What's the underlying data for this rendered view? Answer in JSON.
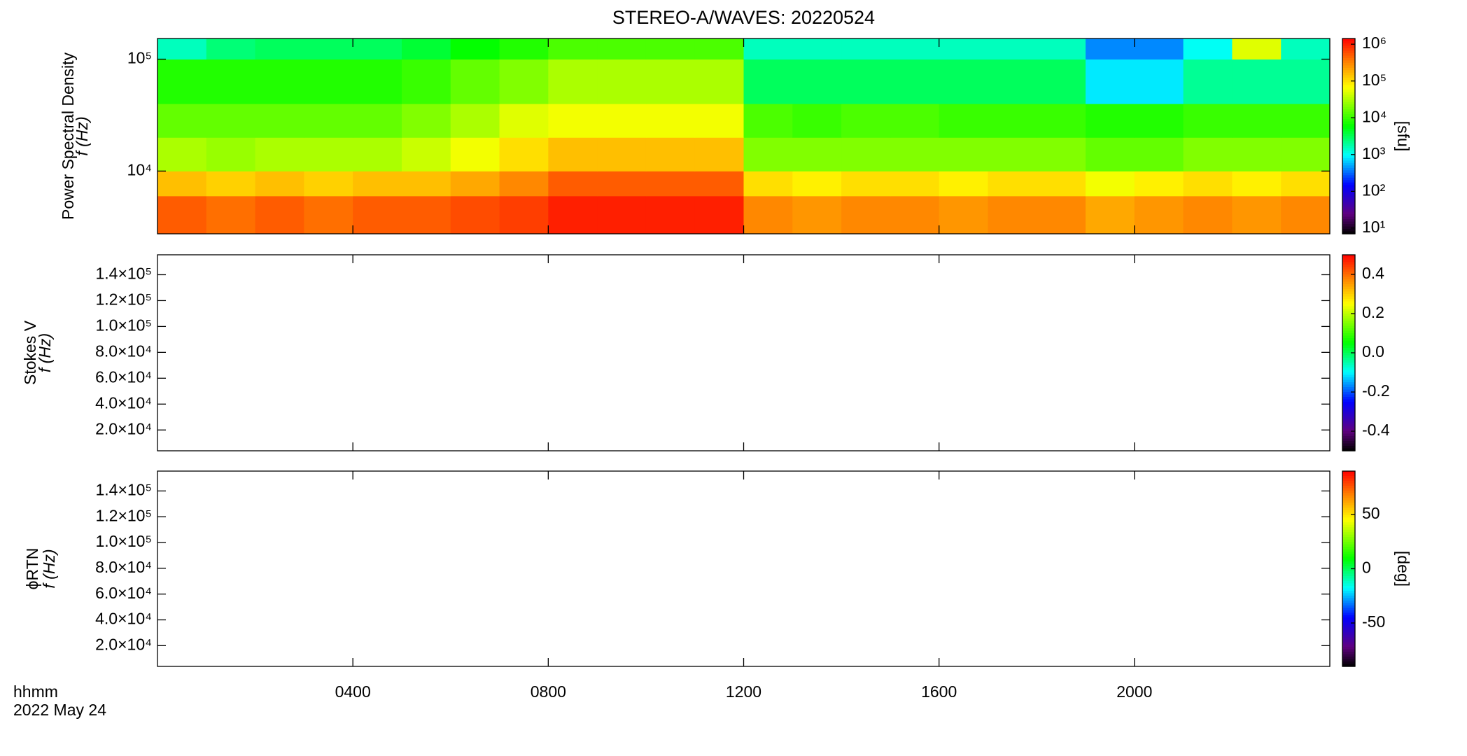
{
  "chart_data": [
    {
      "type": "heatmap",
      "title": "STEREO-A/WAVES: 20220524",
      "ylabel": [
        "Power Spectral Density",
        "f (Hz)"
      ],
      "ylog": true,
      "ylim": [
        2750,
        153000
      ],
      "yticks": [
        {
          "value": 10000,
          "label": "10⁴"
        },
        {
          "value": 100000,
          "label": "10⁵"
        }
      ],
      "xlim": [
        0,
        24
      ],
      "x": [
        0,
        1,
        2,
        3,
        4,
        5,
        6,
        7,
        8,
        9,
        10,
        11,
        12,
        13,
        14,
        15,
        16,
        17,
        18,
        19,
        20,
        21,
        22,
        23,
        24
      ],
      "y": [
        2750,
        6000,
        10000,
        20000,
        40000,
        100000,
        153000
      ],
      "z": [
        [
          500000,
          400000,
          500000,
          400000,
          500000,
          500000,
          600000,
          700000,
          1000000,
          1000000,
          1000000,
          1000000,
          300000,
          250000,
          300000,
          300000,
          250000,
          300000,
          300000,
          200000,
          250000,
          300000,
          250000,
          300000
        ],
        [
          150000,
          120000,
          150000,
          120000,
          150000,
          150000,
          200000,
          300000,
          500000,
          500000,
          500000,
          500000,
          100000,
          80000,
          100000,
          100000,
          80000,
          100000,
          100000,
          60000,
          80000,
          100000,
          80000,
          100000
        ],
        [
          30000,
          25000,
          30000,
          30000,
          30000,
          40000,
          60000,
          100000,
          150000,
          150000,
          150000,
          150000,
          20000,
          20000,
          20000,
          20000,
          20000,
          20000,
          20000,
          15000,
          15000,
          20000,
          20000,
          20000
        ],
        [
          15000,
          15000,
          15000,
          15000,
          15000,
          20000,
          30000,
          50000,
          60000,
          60000,
          60000,
          60000,
          12000,
          10000,
          12000,
          12000,
          10000,
          10000,
          10000,
          8000,
          8000,
          10000,
          10000,
          10000
        ],
        [
          8000,
          8000,
          8000,
          8000,
          8000,
          10000,
          15000,
          20000,
          30000,
          30000,
          30000,
          30000,
          3000,
          3000,
          3000,
          3000,
          3000,
          3000,
          3000,
          800,
          800,
          2000,
          2000,
          2000
        ],
        [
          1500,
          2500,
          3000,
          3000,
          3000,
          4000,
          6000,
          8000,
          12000,
          12000,
          12000,
          12000,
          1500,
          1500,
          1500,
          1500,
          1500,
          1500,
          1500,
          400,
          400,
          1000,
          50000,
          1500
        ]
      ],
      "zlog": true,
      "zlim": [
        7,
        1430000
      ],
      "zticks": [
        {
          "value": 10,
          "label": "10¹"
        },
        {
          "value": 100,
          "label": "10²"
        },
        {
          "value": 1000,
          "label": "10³"
        },
        {
          "value": 10000,
          "label": "10⁴"
        },
        {
          "value": 100000,
          "label": "10⁵"
        },
        {
          "value": 1000000,
          "label": "10⁶"
        }
      ],
      "zlabel": "[sfu]"
    },
    {
      "type": "heatmap",
      "ylabel": [
        "Stokes V",
        "f (Hz)"
      ],
      "ylim": [
        3900,
        155400
      ],
      "xlim": [
        0,
        24
      ],
      "yticks": [
        {
          "value": 20000,
          "label": "2.0×10⁴"
        },
        {
          "value": 40000,
          "label": "4.0×10⁴"
        },
        {
          "value": 60000,
          "label": "6.0×10⁴"
        },
        {
          "value": 80000,
          "label": "8.0×10⁴"
        },
        {
          "value": 100000,
          "label": "1.0×10⁵"
        },
        {
          "value": 120000,
          "label": "1.2×10⁵"
        },
        {
          "value": 140000,
          "label": "1.4×10⁵"
        }
      ],
      "zlim": [
        -0.5,
        0.5
      ],
      "zticks": [
        -0.4,
        -0.2,
        {
          "value": 0,
          "label": "0.0"
        },
        0.2,
        0.4
      ]
    },
    {
      "type": "heatmap",
      "ylabel": [
        "ϕRTN",
        "f (Hz)"
      ],
      "ylim": [
        3900,
        155400
      ],
      "xlim": [
        0,
        24
      ],
      "yticks": [
        {
          "value": 20000,
          "label": "2.0×10⁴"
        },
        {
          "value": 40000,
          "label": "4.0×10⁴"
        },
        {
          "value": 60000,
          "label": "6.0×10⁴"
        },
        {
          "value": 80000,
          "label": "8.0×10⁴"
        },
        {
          "value": 100000,
          "label": "1.0×10⁵"
        },
        {
          "value": 120000,
          "label": "1.2×10⁵"
        },
        {
          "value": 140000,
          "label": "1.4×10⁵"
        }
      ],
      "zlim": [
        -90,
        90
      ],
      "zticks": [
        -50,
        0,
        50
      ],
      "zlabel": "[deg]",
      "xticks": [
        {
          "value": 4,
          "label": "0400"
        },
        {
          "value": 8,
          "label": "0800"
        },
        {
          "value": 12,
          "label": "1200"
        },
        {
          "value": 16,
          "label": "1600"
        },
        {
          "value": 20,
          "label": "2000"
        }
      ],
      "xlabel": [
        "hhmm",
        "2022 May 24"
      ]
    }
  ]
}
